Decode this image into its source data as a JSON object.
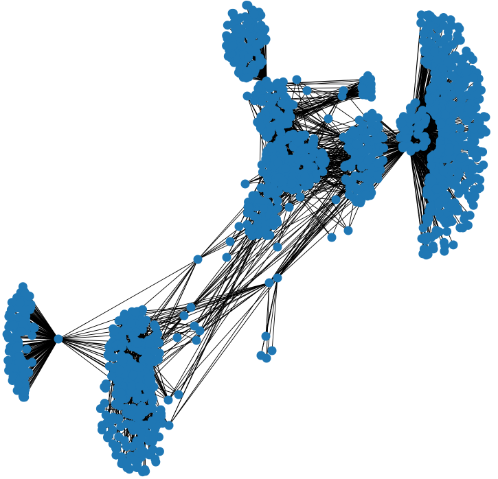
{
  "graph": {
    "node_color": "#1f77b4",
    "edge_color": "#000000",
    "background_color": "#ffffff"
  }
}
